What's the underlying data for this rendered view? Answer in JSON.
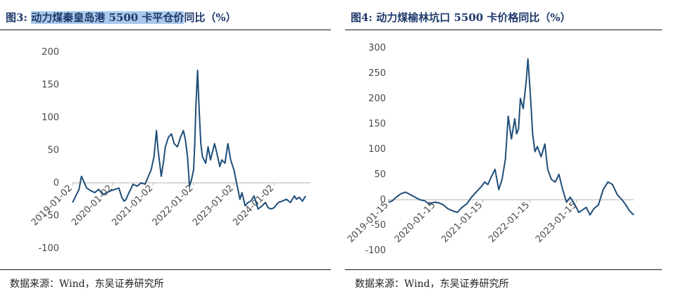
{
  "charts": [
    {
      "title_num": "图3:",
      "title_highlight": "动力煤秦皇岛港 5500 卡平仓价",
      "title_rest": "同比（%）",
      "source": "数据来源：Wind，东吴证券研究所"
    },
    {
      "title_num": "图4:",
      "title_highlight": "",
      "title_rest": "动力煤榆林坑口 5500 卡价格同比（%）",
      "source": "数据来源：Wind，东吴证券研究所"
    }
  ],
  "colors": {
    "line": "#1f4e79",
    "title": "#1f3a6b",
    "highlight": "#a9c8ea"
  },
  "chart_data": [
    {
      "type": "line",
      "title": "动力煤秦皇岛港 5500 卡平仓价同比（%）",
      "ylim": [
        -100,
        200
      ],
      "yticks": [
        -100,
        -50,
        0,
        50,
        100,
        150,
        200
      ],
      "xlim": [
        2019.0,
        2024.9
      ],
      "xticks": [
        2019.0,
        2020.0,
        2021.0,
        2022.0,
        2023.0,
        2024.0
      ],
      "xtick_labels": [
        "2019-01-02",
        "2020-01-02",
        "2021-01-02",
        "2022-01-02",
        "2023-01-02",
        "2024-01-02"
      ],
      "series": [
        {
          "x": [
            2019.0,
            2019.08,
            2019.16,
            2019.22,
            2019.28,
            2019.35,
            2019.45,
            2019.55,
            2019.65,
            2019.75,
            2019.85,
            2019.95,
            2020.05,
            2020.15,
            2020.22,
            2020.28,
            2020.32,
            2020.4,
            2020.5,
            2020.6,
            2020.7,
            2020.8,
            2020.88,
            2020.95,
            2021.02,
            2021.08,
            2021.12,
            2021.15,
            2021.2,
            2021.25,
            2021.3,
            2021.38,
            2021.45,
            2021.52,
            2021.6,
            2021.68,
            2021.75,
            2021.8,
            2021.85,
            2021.9,
            2021.95,
            2022.0,
            2022.03,
            2022.06,
            2022.1,
            2022.14,
            2022.18,
            2022.22,
            2022.3,
            2022.36,
            2022.42,
            2022.48,
            2022.52,
            2022.58,
            2022.65,
            2022.7,
            2022.78,
            2022.85,
            2022.92,
            2023.0,
            2023.05,
            2023.1,
            2023.15,
            2023.2,
            2023.28,
            2023.35,
            2023.42,
            2023.5,
            2023.6,
            2023.7,
            2023.78,
            2023.85,
            2023.92,
            2024.0,
            2024.1,
            2024.2,
            2024.3,
            2024.4,
            2024.5,
            2024.55,
            2024.62,
            2024.7,
            2024.78
          ],
          "y": [
            -30,
            -20,
            -10,
            10,
            2,
            -8,
            -12,
            -15,
            -10,
            -18,
            -15,
            -12,
            -10,
            -8,
            -22,
            -28,
            -26,
            -15,
            -2,
            -5,
            0,
            -2,
            10,
            20,
            40,
            80,
            50,
            35,
            10,
            30,
            55,
            70,
            75,
            60,
            55,
            70,
            80,
            65,
            40,
            -5,
            5,
            20,
            60,
            120,
            172,
            110,
            60,
            40,
            30,
            55,
            35,
            50,
            60,
            45,
            25,
            35,
            30,
            60,
            35,
            20,
            5,
            -10,
            -25,
            -15,
            -35,
            -30,
            -28,
            -20,
            -40,
            -35,
            -30,
            -38,
            -40,
            -38,
            -30,
            -28,
            -25,
            -30,
            -20,
            -25,
            -22,
            -28,
            -20
          ]
        }
      ]
    },
    {
      "type": "line",
      "title": "动力煤榆林坑口 5500 卡价格同比（%）",
      "ylim": [
        -100,
        300
      ],
      "yticks": [
        -100,
        -50,
        0,
        50,
        100,
        150,
        200,
        250,
        300
      ],
      "xlim": [
        2019.04,
        2024.25
      ],
      "xticks": [
        2019.04,
        2020.04,
        2021.04,
        2022.04,
        2023.04
      ],
      "xtick_labels": [
        "2019-01-15",
        "2020-01-15",
        "2021-01-15",
        "2022-01-15",
        "2023-01-15"
      ],
      "series": [
        {
          "x": [
            2019.04,
            2019.12,
            2019.2,
            2019.3,
            2019.4,
            2019.5,
            2019.6,
            2019.7,
            2019.8,
            2019.9,
            2020.0,
            2020.1,
            2020.2,
            2020.3,
            2020.4,
            2020.5,
            2020.6,
            2020.7,
            2020.8,
            2020.9,
            2021.0,
            2021.08,
            2021.15,
            2021.22,
            2021.3,
            2021.38,
            2021.45,
            2021.52,
            2021.58,
            2021.65,
            2021.72,
            2021.76,
            2021.8,
            2021.84,
            2021.9,
            2021.96,
            2022.0,
            2022.05,
            2022.1,
            2022.15,
            2022.2,
            2022.28,
            2022.36,
            2022.42,
            2022.5,
            2022.58,
            2022.66,
            2022.74,
            2022.82,
            2022.9,
            2023.0,
            2023.08,
            2023.16,
            2023.24,
            2023.32,
            2023.4,
            2023.5,
            2023.6,
            2023.7,
            2023.8,
            2023.9,
            2024.0,
            2024.08,
            2024.16,
            2024.25
          ],
          "y": [
            -5,
            -2,
            5,
            12,
            15,
            10,
            5,
            0,
            -2,
            -8,
            -5,
            -6,
            -10,
            -18,
            -22,
            -25,
            -15,
            -8,
            5,
            15,
            25,
            35,
            30,
            45,
            60,
            20,
            40,
            80,
            165,
            120,
            160,
            130,
            140,
            200,
            180,
            230,
            278,
            210,
            130,
            95,
            105,
            85,
            110,
            60,
            40,
            35,
            50,
            20,
            -5,
            5,
            -10,
            -25,
            -20,
            -15,
            -30,
            -18,
            -10,
            20,
            35,
            30,
            10,
            0,
            -10,
            -22,
            -30
          ]
        }
      ]
    }
  ]
}
